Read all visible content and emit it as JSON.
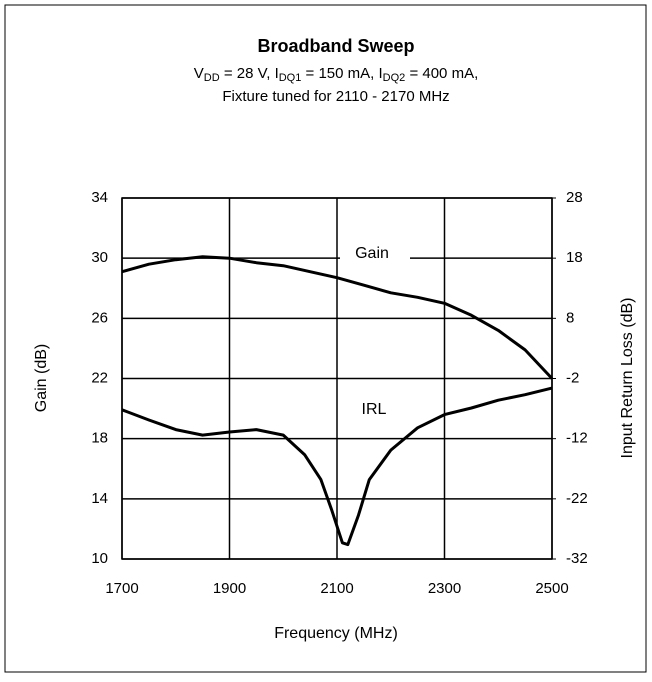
{
  "chart_data": {
    "type": "line",
    "title": "Broadband Sweep",
    "subtitle": [
      "V",
      "DD",
      " = 28 V, I",
      "DQ1",
      " = 150 mA, I",
      "DQ2",
      " = 400 mA,"
    ],
    "subtitle2": "Fixture tuned for 2110 - 2170 MHz",
    "xlabel": "Frequency (MHz)",
    "ylabel": "Gain (dB)",
    "y2label": "Input Return Loss (dB)",
    "annotations": [
      "Gain",
      "IRL"
    ],
    "xlim": [
      1700,
      2500
    ],
    "xticks": [
      1700,
      1900,
      2100,
      2300,
      2500
    ],
    "ylim": [
      10,
      34
    ],
    "yticks": [
      10,
      14,
      18,
      22,
      26,
      30,
      34
    ],
    "y2lim": [
      -32,
      28
    ],
    "y2ticks": [
      -32,
      -22,
      -12,
      -2,
      8,
      18,
      28
    ],
    "grid": true,
    "series": [
      {
        "name": "Gain",
        "color": "#000000",
        "axis": "y",
        "x": [
          1700,
          1750,
          1800,
          1850,
          1900,
          1950,
          2000,
          2050,
          2100,
          2150,
          2200,
          2250,
          2300,
          2350,
          2400,
          2450,
          2500
        ],
        "values": [
          29.1,
          29.6,
          29.9,
          30.1,
          30.0,
          29.7,
          29.5,
          29.1,
          28.7,
          28.2,
          27.7,
          27.4,
          27.0,
          26.2,
          25.2,
          23.9,
          22.0
        ]
      },
      {
        "name": "IRL",
        "color": "#000000",
        "axis": "y2",
        "x": [
          1700,
          1750,
          1800,
          1850,
          1900,
          1950,
          2000,
          2040,
          2070,
          2090,
          2110,
          2120,
          2140,
          2160,
          2200,
          2250,
          2300,
          2350,
          2400,
          2450,
          2500
        ],
        "values": [
          -7.2,
          -8.9,
          -10.5,
          -11.4,
          -10.9,
          -10.5,
          -11.4,
          -14.7,
          -18.8,
          -23.8,
          -29.3,
          -29.6,
          -24.7,
          -18.8,
          -13.9,
          -10.2,
          -8.0,
          -6.9,
          -5.6,
          -4.7,
          -3.6
        ]
      }
    ]
  }
}
